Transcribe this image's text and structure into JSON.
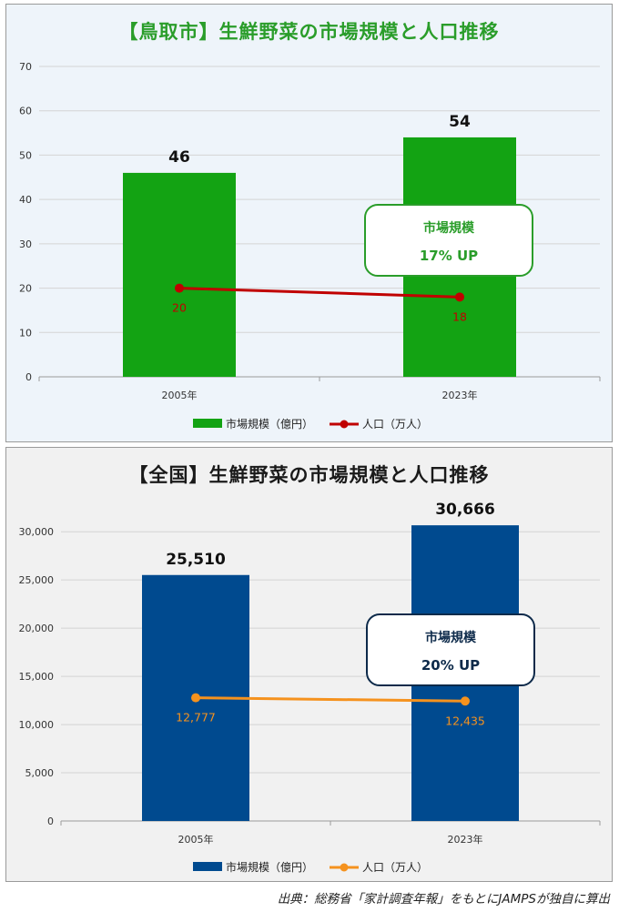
{
  "chart_data": [
    {
      "type": "bar",
      "title": "【鳥取市】生鮮野菜の市場規模と人口推移",
      "categories": [
        "2005年",
        "2023年"
      ],
      "series": [
        {
          "name": "市場規模（億円）",
          "type": "bar",
          "values": [
            46,
            54
          ],
          "labels": [
            "46",
            "54"
          ],
          "color": "#13a313"
        },
        {
          "name": "人口（万人）",
          "type": "line",
          "values": [
            20,
            18
          ],
          "labels": [
            "20",
            "18"
          ],
          "color": "#c00000"
        }
      ],
      "ylim": [
        0,
        70
      ],
      "yticks": [
        0,
        10,
        20,
        30,
        40,
        50,
        60,
        70
      ],
      "ytick_labels": [
        "0",
        "10",
        "20",
        "30",
        "40",
        "50",
        "60",
        "70"
      ],
      "grid": true,
      "legend": "bottom",
      "annotation": {
        "line1": "市場規模",
        "line2": "17% UP",
        "color": "#2a9d2a"
      }
    },
    {
      "type": "bar",
      "title": "【全国】生鮮野菜の市場規模と人口推移",
      "categories": [
        "2005年",
        "2023年"
      ],
      "series": [
        {
          "name": "市場規模（億円）",
          "type": "bar",
          "values": [
            25510,
            30666
          ],
          "labels": [
            "25,510",
            "30,666"
          ],
          "color": "#004a8f"
        },
        {
          "name": "人口（万人）",
          "type": "line",
          "values": [
            12777,
            12435
          ],
          "labels": [
            "12,777",
            "12,435"
          ],
          "color": "#f5921e"
        }
      ],
      "ylim": [
        0,
        32000
      ],
      "yticks": [
        0,
        5000,
        10000,
        15000,
        20000,
        25000,
        30000
      ],
      "ytick_labels": [
        "0",
        "5,000",
        "10,000",
        "15,000",
        "20,000",
        "25,000",
        "30,000"
      ],
      "grid": true,
      "legend": "bottom",
      "annotation": {
        "line1": "市場規模",
        "line2": "20% UP",
        "color": "#0d2a4a"
      }
    }
  ],
  "source_note": "出典：総務省「家計調査年報」をもとにJAMPSが独自に算出"
}
